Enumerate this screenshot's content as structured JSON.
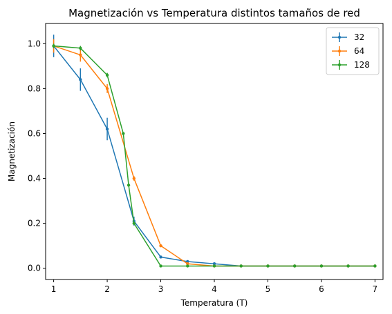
{
  "chart_data": {
    "type": "line",
    "title": "Magnetización vs Temperatura distintos tamaños de red",
    "xlabel": "Temperatura (T)",
    "ylabel": "Magnetización",
    "xlim": [
      0.85,
      7.15
    ],
    "ylim": [
      -0.05,
      1.09
    ],
    "xticks": [
      1,
      2,
      3,
      4,
      5,
      6,
      7
    ],
    "yticks": [
      0.0,
      0.2,
      0.4,
      0.6,
      0.8,
      1.0
    ],
    "xtick_labels": [
      "1",
      "2",
      "3",
      "4",
      "5",
      "6",
      "7"
    ],
    "ytick_labels": [
      "0.0",
      "0.2",
      "0.4",
      "0.6",
      "0.8",
      "1.0"
    ],
    "grid": false,
    "legend_position": "top-right",
    "series": [
      {
        "name": "32",
        "color": "#1f77b4",
        "x": [
          1.0,
          1.5,
          2.0,
          2.5,
          3.0,
          3.5,
          4.0,
          4.5,
          5.0,
          5.5,
          6.0,
          6.5,
          7.0
        ],
        "y": [
          0.99,
          0.84,
          0.62,
          0.21,
          0.05,
          0.03,
          0.02,
          0.01,
          0.01,
          0.01,
          0.01,
          0.01,
          0.01
        ],
        "yerr": [
          0.05,
          0.05,
          0.05,
          0.02,
          0.005,
          0.005,
          0.005,
          0.002,
          0.002,
          0.002,
          0.002,
          0.002,
          0.002
        ]
      },
      {
        "name": "64",
        "color": "#ff7f0e",
        "x": [
          1.0,
          1.5,
          2.0,
          2.5,
          3.0,
          3.5,
          4.0,
          4.5,
          5.0,
          5.5,
          6.0,
          6.5,
          7.0
        ],
        "y": [
          0.99,
          0.95,
          0.8,
          0.4,
          0.1,
          0.02,
          0.01,
          0.01,
          0.01,
          0.01,
          0.01,
          0.01,
          0.01
        ],
        "yerr": [
          0.03,
          0.03,
          0.02,
          0.01,
          0.005,
          0.003,
          0.002,
          0.002,
          0.002,
          0.002,
          0.002,
          0.002,
          0.002
        ]
      },
      {
        "name": "128",
        "color": "#2ca02c",
        "x": [
          1.0,
          1.5,
          2.0,
          2.3,
          2.4,
          2.5,
          3.0,
          3.5,
          4.0,
          4.5,
          5.0,
          5.5,
          6.0,
          6.5,
          7.0
        ],
        "y": [
          0.99,
          0.98,
          0.86,
          0.6,
          0.37,
          0.2,
          0.01,
          0.01,
          0.01,
          0.01,
          0.01,
          0.01,
          0.01,
          0.01,
          0.01
        ],
        "yerr": [
          0.01,
          0.01,
          0.01,
          0.005,
          0.005,
          0.005,
          0.002,
          0.002,
          0.002,
          0.002,
          0.002,
          0.002,
          0.002,
          0.002,
          0.002
        ]
      }
    ]
  }
}
